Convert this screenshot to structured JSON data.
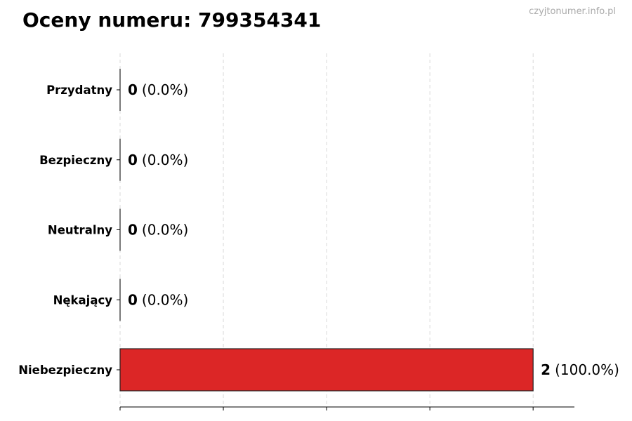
{
  "title": "Oceny numeru: 799354341",
  "watermark": "czyjtonumer.info.pl",
  "chart_data": {
    "type": "bar",
    "orientation": "horizontal",
    "title": "Oceny numeru: 799354341",
    "categories": [
      "Przydatny",
      "Bezpieczny",
      "Neutralny",
      "Nękający",
      "Niebezpieczny"
    ],
    "values": [
      0,
      0,
      0,
      0,
      2
    ],
    "data_labels": [
      {
        "count": "0",
        "pct": "(0.0%)"
      },
      {
        "count": "0",
        "pct": "(0.0%)"
      },
      {
        "count": "0",
        "pct": "(0.0%)"
      },
      {
        "count": "0",
        "pct": "(0.0%)"
      },
      {
        "count": "2",
        "pct": "(100.0%)"
      }
    ],
    "colors": [
      "#dc2626",
      "#dc2626",
      "#dc2626",
      "#dc2626",
      "#dc2626"
    ],
    "xlim": [
      0,
      2.2
    ],
    "xticks": [
      0,
      0.5,
      1,
      1.5,
      2
    ],
    "xtick_labels_shown": false,
    "grid": "x, dashed",
    "xlabel": "",
    "ylabel": ""
  }
}
